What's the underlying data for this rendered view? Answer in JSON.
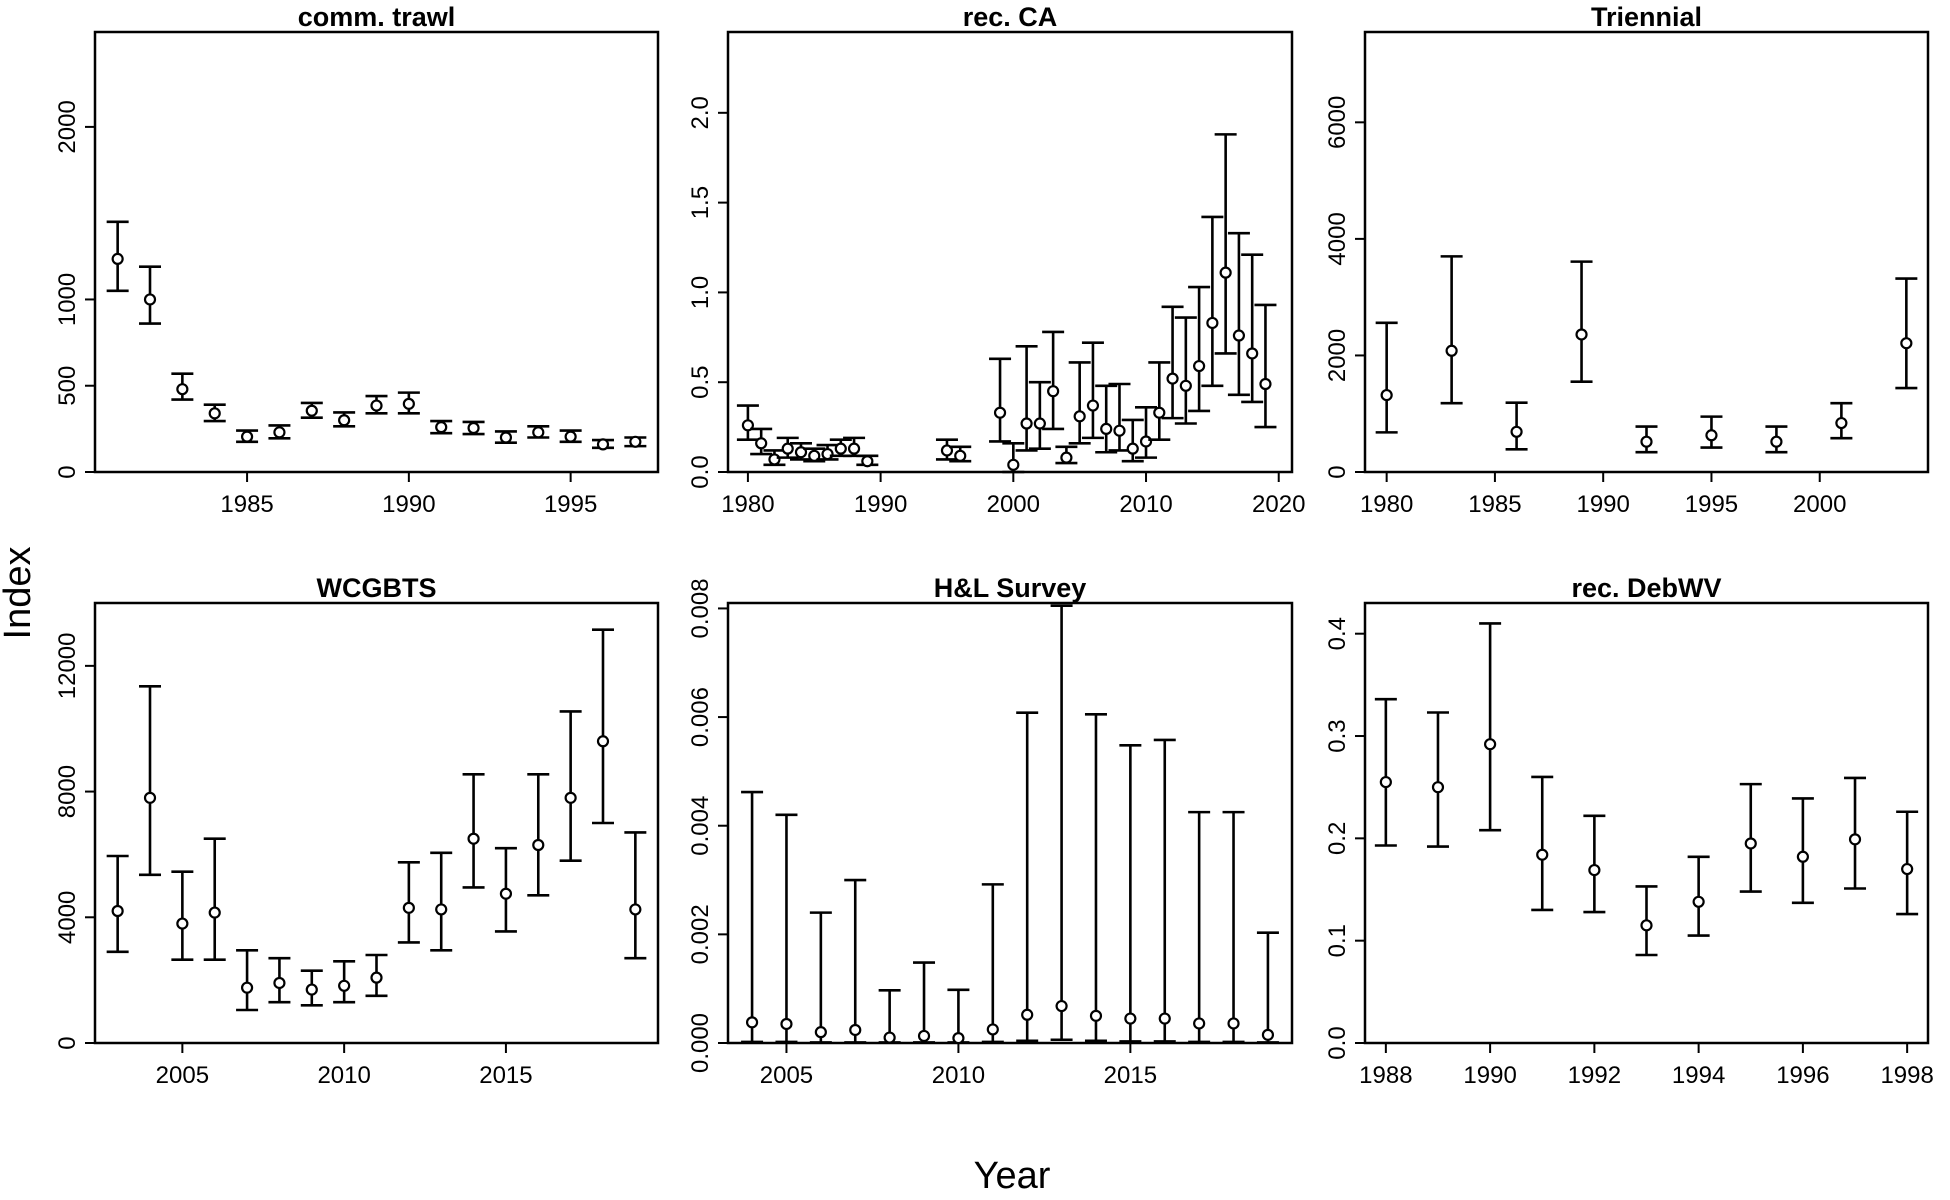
{
  "figure": {
    "xlabel": "Year",
    "ylabel": "Index"
  },
  "chart_data": [
    {
      "type": "scatter",
      "title": "comm. trawl",
      "xlim": [
        1980.3,
        1997.7
      ],
      "ylim": [
        0,
        2550
      ],
      "xticks": [
        1985,
        1990,
        1995
      ],
      "yticks": [
        0,
        500,
        1000,
        2000
      ],
      "x": [
        1981,
        1982,
        1983,
        1984,
        1985,
        1986,
        1987,
        1988,
        1989,
        1990,
        1991,
        1992,
        1993,
        1994,
        1995,
        1996,
        1997
      ],
      "y": [
        1235,
        1000,
        480,
        340,
        205,
        230,
        355,
        300,
        385,
        395,
        260,
        255,
        200,
        230,
        205,
        160,
        175
      ],
      "lower": [
        1050,
        860,
        420,
        295,
        175,
        195,
        315,
        265,
        340,
        340,
        225,
        220,
        170,
        200,
        175,
        140,
        150
      ],
      "upper": [
        1450,
        1190,
        570,
        390,
        240,
        270,
        400,
        345,
        440,
        460,
        295,
        290,
        235,
        265,
        240,
        185,
        200
      ]
    },
    {
      "type": "scatter",
      "title": "rec. CA",
      "xlim": [
        1978.5,
        2021.0
      ],
      "ylim": [
        0,
        2.45
      ],
      "xticks": [
        1980,
        1990,
        2000,
        2010,
        2020
      ],
      "yticks": [
        0.0,
        0.5,
        1.0,
        1.5,
        2.0
      ],
      "ytick_labels": [
        "0.0",
        "0.5",
        "1.0",
        "1.5",
        "2.0"
      ],
      "x": [
        1980,
        1981,
        1982,
        1983,
        1984,
        1985,
        1986,
        1987,
        1988,
        1989,
        1995,
        1996,
        1999,
        2000,
        2001,
        2002,
        2003,
        2004,
        2005,
        2006,
        2007,
        2008,
        2009,
        2010,
        2011,
        2012,
        2013,
        2014,
        2015,
        2016,
        2017,
        2018,
        2019
      ],
      "y": [
        0.26,
        0.16,
        0.07,
        0.13,
        0.11,
        0.09,
        0.1,
        0.13,
        0.13,
        0.06,
        0.12,
        0.09,
        0.33,
        0.04,
        0.27,
        0.27,
        0.45,
        0.08,
        0.31,
        0.37,
        0.24,
        0.23,
        0.13,
        0.17,
        0.33,
        0.52,
        0.48,
        0.59,
        0.83,
        1.11,
        0.76,
        0.66,
        0.49
      ],
      "lower": [
        0.18,
        0.1,
        0.04,
        0.08,
        0.07,
        0.06,
        0.07,
        0.09,
        0.09,
        0.04,
        0.07,
        0.06,
        0.17,
        0.0,
        0.12,
        0.13,
        0.24,
        0.05,
        0.16,
        0.19,
        0.11,
        0.12,
        0.06,
        0.08,
        0.18,
        0.3,
        0.27,
        0.34,
        0.48,
        0.66,
        0.43,
        0.39,
        0.25
      ],
      "upper": [
        0.37,
        0.24,
        0.12,
        0.19,
        0.16,
        0.13,
        0.15,
        0.18,
        0.19,
        0.09,
        0.18,
        0.14,
        0.63,
        0.16,
        0.7,
        0.5,
        0.78,
        0.14,
        0.61,
        0.72,
        0.48,
        0.49,
        0.29,
        0.36,
        0.61,
        0.92,
        0.86,
        1.03,
        1.42,
        1.88,
        1.33,
        1.21,
        0.93
      ]
    },
    {
      "type": "scatter",
      "title": "Triennial",
      "xlim": [
        1979.0,
        2005.0
      ],
      "ylim": [
        0,
        7550
      ],
      "xticks": [
        1980,
        1985,
        1990,
        1995,
        2000
      ],
      "yticks": [
        0,
        2000,
        4000,
        6000
      ],
      "x": [
        1980,
        1983,
        1986,
        1989,
        1992,
        1995,
        1998,
        2001,
        2004
      ],
      "y": [
        1320,
        2080,
        690,
        2360,
        520,
        630,
        520,
        840,
        2210
      ],
      "lower": [
        680,
        1180,
        390,
        1550,
        340,
        420,
        340,
        580,
        1440
      ],
      "upper": [
        2560,
        3700,
        1190,
        3610,
        780,
        950,
        780,
        1180,
        3320
      ]
    },
    {
      "type": "scatter",
      "title": "WCGBTS",
      "xlim": [
        2002.3,
        2019.7
      ],
      "ylim": [
        0,
        14000
      ],
      "xticks": [
        2005,
        2010,
        2015
      ],
      "yticks": [
        0,
        4000,
        8000,
        12000
      ],
      "x": [
        2003,
        2004,
        2005,
        2006,
        2007,
        2008,
        2009,
        2010,
        2011,
        2012,
        2013,
        2014,
        2015,
        2016,
        2017,
        2018,
        2019
      ],
      "y": [
        4200,
        7800,
        3800,
        4150,
        1760,
        1910,
        1700,
        1820,
        2080,
        4300,
        4250,
        6500,
        4750,
        6300,
        7800,
        9600,
        4250
      ],
      "lower": [
        2900,
        5350,
        2650,
        2650,
        1050,
        1300,
        1200,
        1300,
        1500,
        3200,
        2950,
        4950,
        3550,
        4700,
        5800,
        7000,
        2700
      ],
      "upper": [
        5950,
        11350,
        5450,
        6500,
        2950,
        2700,
        2300,
        2600,
        2800,
        5750,
        6050,
        8550,
        6200,
        8550,
        10550,
        13150,
        6700
      ]
    },
    {
      "type": "scatter",
      "title": "H&L Survey",
      "xlim": [
        2003.3,
        2019.7
      ],
      "ylim": [
        0,
        0.0081
      ],
      "xticks": [
        2005,
        2010,
        2015
      ],
      "yticks": [
        0.0,
        0.002,
        0.004,
        0.006,
        0.008
      ],
      "ytick_labels": [
        "0.000",
        "0.002",
        "0.004",
        "0.006",
        "0.008"
      ],
      "x": [
        2004,
        2005,
        2006,
        2007,
        2008,
        2009,
        2010,
        2011,
        2012,
        2013,
        2014,
        2015,
        2016,
        2017,
        2018,
        2019
      ],
      "y": [
        0.00038,
        0.00035,
        0.0002,
        0.00024,
        0.0001,
        0.00013,
        9e-05,
        0.00025,
        0.00052,
        0.00068,
        0.0005,
        0.00045,
        0.00045,
        0.00036,
        0.00036,
        0.00015
      ],
      "lower": [
        2e-05,
        2e-05,
        1e-05,
        1e-05,
        1e-05,
        1e-05,
        1e-05,
        2e-05,
        4e-05,
        6e-05,
        4e-05,
        3e-05,
        3e-05,
        2e-05,
        2e-05,
        1e-05
      ],
      "upper": [
        0.00462,
        0.0042,
        0.0024,
        0.003,
        0.00097,
        0.00148,
        0.00098,
        0.00292,
        0.00608,
        0.00805,
        0.00605,
        0.00548,
        0.00558,
        0.00425,
        0.00425,
        0.00203
      ]
    },
    {
      "type": "scatter",
      "title": "rec. DebWV",
      "xlim": [
        1987.6,
        1998.4
      ],
      "ylim": [
        0,
        0.43
      ],
      "xticks": [
        1988,
        1990,
        1992,
        1994,
        1996,
        1998
      ],
      "yticks": [
        0.0,
        0.1,
        0.2,
        0.3,
        0.4
      ],
      "ytick_labels": [
        "0.0",
        "0.1",
        "0.2",
        "0.3",
        "0.4"
      ],
      "x": [
        1988,
        1989,
        1990,
        1991,
        1992,
        1993,
        1994,
        1995,
        1996,
        1997,
        1998
      ],
      "y": [
        0.255,
        0.25,
        0.292,
        0.184,
        0.169,
        0.115,
        0.138,
        0.195,
        0.182,
        0.199,
        0.17
      ],
      "lower": [
        0.193,
        0.192,
        0.208,
        0.13,
        0.128,
        0.086,
        0.105,
        0.148,
        0.137,
        0.151,
        0.126
      ],
      "upper": [
        0.336,
        0.323,
        0.41,
        0.26,
        0.222,
        0.153,
        0.182,
        0.253,
        0.239,
        0.259,
        0.226
      ]
    }
  ]
}
